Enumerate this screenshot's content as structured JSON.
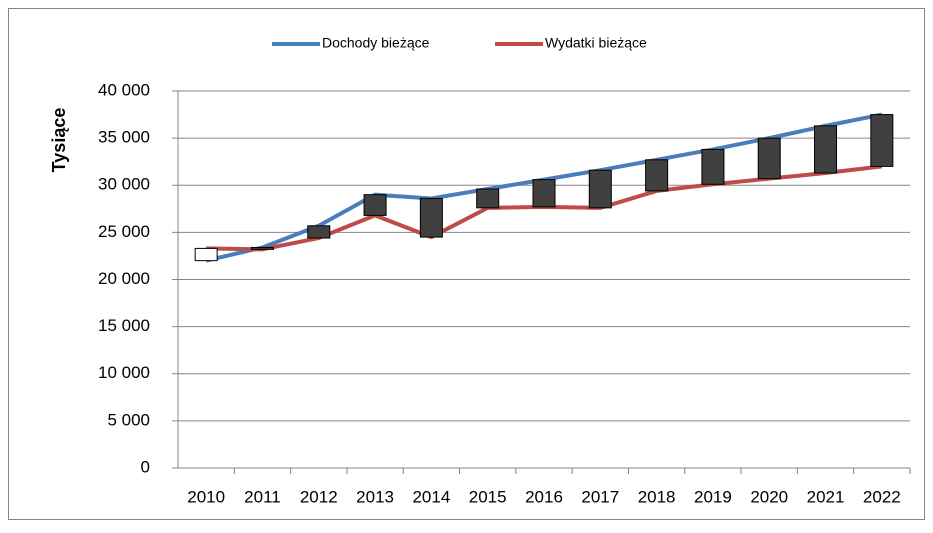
{
  "chart_data": {
    "type": "line",
    "y_label": "Tysiące",
    "categories": [
      "2010",
      "2011",
      "2012",
      "2013",
      "2014",
      "2015",
      "2016",
      "2017",
      "2018",
      "2019",
      "2020",
      "2021",
      "2022"
    ],
    "series": [
      {
        "name": "Dochody bieżące",
        "color": "#4a7ebb",
        "values": [
          22000,
          23400,
          25700,
          29000,
          28600,
          29600,
          30600,
          31600,
          32700,
          33800,
          35000,
          36300,
          37500
        ]
      },
      {
        "name": "Wydatki bieżące",
        "color": "#be4b48",
        "values": [
          23300,
          23200,
          24400,
          26800,
          24500,
          27600,
          27700,
          27600,
          29400,
          30100,
          30700,
          31300,
          32000
        ]
      }
    ],
    "up_down_bars": true,
    "up_color": "#ffffff",
    "down_color": "#404040",
    "ylim": [
      0,
      40000
    ],
    "yticks": [
      {
        "value": 0,
        "label": "0"
      },
      {
        "value": 5000,
        "label": "5 000"
      },
      {
        "value": 10000,
        "label": "10 000"
      },
      {
        "value": 15000,
        "label": "15 000"
      },
      {
        "value": 20000,
        "label": "20 000"
      },
      {
        "value": 25000,
        "label": "25 000"
      },
      {
        "value": 30000,
        "label": "30 000"
      },
      {
        "value": 35000,
        "label": "35 000"
      },
      {
        "value": 40000,
        "label": "40 000"
      }
    ],
    "grid": true,
    "legend": "top"
  }
}
